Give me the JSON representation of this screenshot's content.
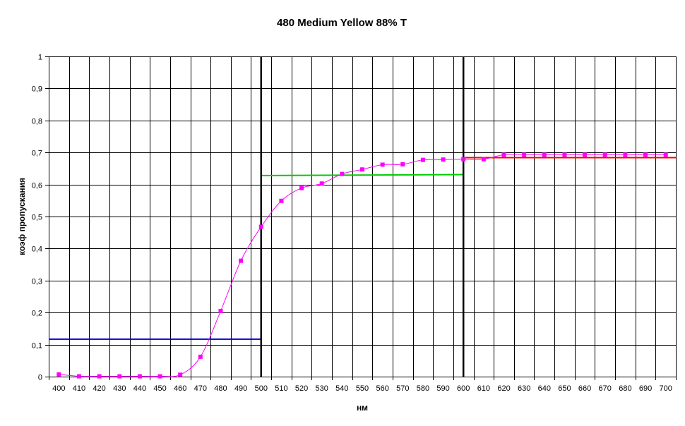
{
  "chart_data": {
    "type": "line",
    "title": "480 Medium Yellow 88% T",
    "xlabel": "нм",
    "ylabel": "коэф пропускания",
    "xlim": [
      395,
      705
    ],
    "ylim": [
      0,
      1
    ],
    "grid": true,
    "legend": "none",
    "x_ticks": [
      "400",
      "410",
      "420",
      "430",
      "440",
      "450",
      "460",
      "470",
      "480",
      "490",
      "500",
      "510",
      "520",
      "530",
      "540",
      "550",
      "560",
      "570",
      "580",
      "590",
      "600",
      "610",
      "620",
      "630",
      "640",
      "650",
      "660",
      "670",
      "680",
      "690",
      "700"
    ],
    "y_ticks": [
      "0",
      "0,1",
      "0,2",
      "0,3",
      "0,4",
      "0,5",
      "0,6",
      "0,7",
      "0,8",
      "0,9",
      "1"
    ],
    "series": [
      {
        "color": "#ff00ff",
        "style": "line-with-square-markers",
        "x": [
          400,
          410,
          420,
          430,
          440,
          450,
          460,
          470,
          480,
          490,
          500,
          510,
          520,
          530,
          540,
          550,
          560,
          570,
          580,
          590,
          600,
          610,
          620,
          630,
          640,
          650,
          660,
          670,
          680,
          690,
          700
        ],
        "y": [
          0.007,
          0.001,
          0.001,
          0.001,
          0.001,
          0.001,
          0.006,
          0.062,
          0.205,
          0.362,
          0.468,
          0.549,
          0.589,
          0.603,
          0.633,
          0.647,
          0.662,
          0.663,
          0.677,
          0.678,
          0.679,
          0.679,
          0.693,
          0.693,
          0.693,
          0.693,
          0.693,
          0.693,
          0.693,
          0.693,
          0.693
        ]
      }
    ],
    "reference_lines": [
      {
        "color": "#0000cc",
        "x": [
          395,
          500
        ],
        "y": [
          0.117,
          0.117
        ]
      },
      {
        "color": "#00cc00",
        "x": [
          500,
          600
        ],
        "y": [
          0.628,
          0.631
        ]
      },
      {
        "color": "#ff0000",
        "x": [
          600,
          705
        ],
        "y": [
          0.684,
          0.684
        ]
      }
    ],
    "vertical_lines": [
      {
        "color": "#000000",
        "x": 500
      },
      {
        "color": "#000000",
        "x": 600
      }
    ]
  }
}
